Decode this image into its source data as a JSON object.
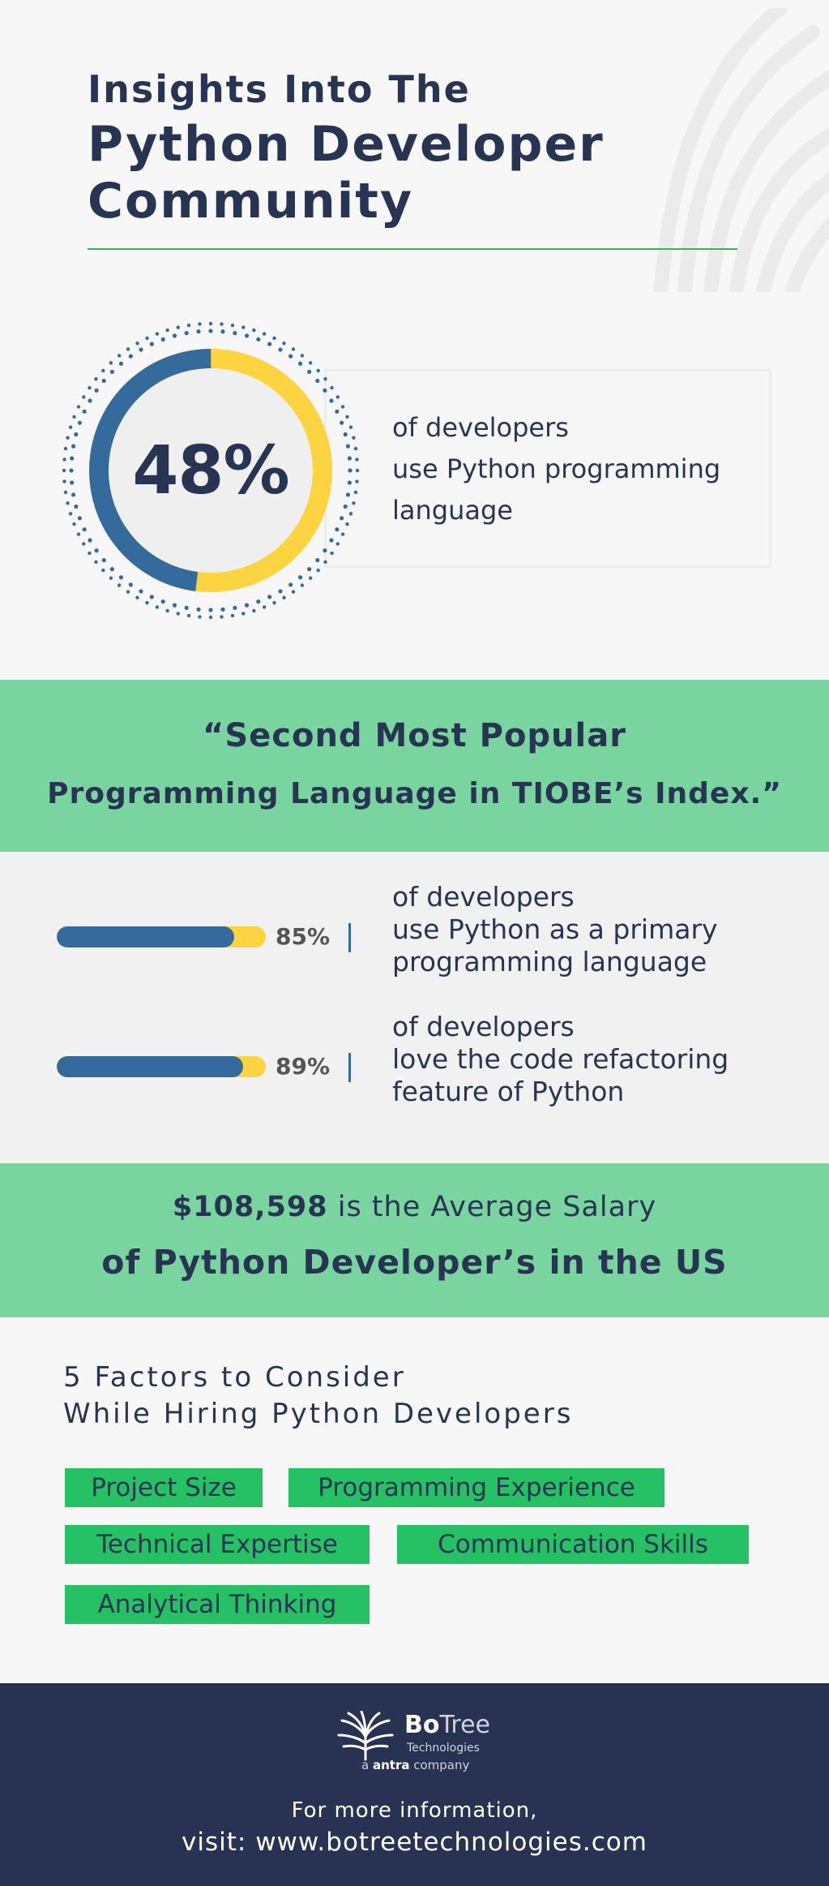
{
  "header": {
    "title_small": "Insights Into The",
    "title_line1": "Python Developer",
    "title_line2": "Community"
  },
  "stat_main": {
    "value": "48%",
    "percent": 48,
    "line1": "of developers",
    "line2": "use Python programming",
    "line3": "language"
  },
  "tiobe": {
    "line1": "“Second Most Popular",
    "line2": "Programming Language in TIOBE’s Index.”"
  },
  "bars": [
    {
      "percent_label": "85%",
      "percent": 85,
      "line1": "of developers",
      "line2": "use Python as a primary",
      "line3": "programming language"
    },
    {
      "percent_label": "89%",
      "percent": 89,
      "line1": "of developers",
      "line2": "love the code refactoring",
      "line3": "feature of Python"
    }
  ],
  "salary": {
    "amount": "$108,598",
    "line1_rest": " is the Average Salary",
    "line2": "of Python Developer’s in the US"
  },
  "factors": {
    "title_line1": "5 Factors to Consider",
    "title_line2": "While Hiring Python Developers",
    "items": [
      "Project Size",
      "Programming Experience",
      "Technical Expertise",
      "Communication Skills",
      "Analytical Thinking"
    ]
  },
  "footer": {
    "logo_bo": "Bo",
    "logo_tree": "Tree",
    "logo_sub": "Technologies",
    "logo_tag_pre": "a ",
    "logo_tag_brand": "antra",
    "logo_tag_post": " company",
    "line1": "For more information,",
    "line2": "visit: www.botreetechnologies.com"
  },
  "colors": {
    "navy": "#283552",
    "blue": "#346b9c",
    "yellow": "#fcd441",
    "green_band": "#79d49f",
    "green_tag": "#27c165",
    "footer_bg": "#283253"
  },
  "icons": {
    "logo": "tree-fan-logo-icon",
    "background": "tree-fan-watermark-icon"
  }
}
